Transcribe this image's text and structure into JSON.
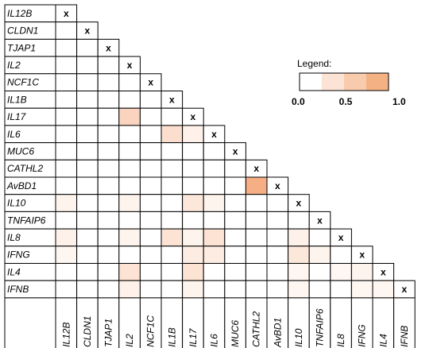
{
  "chart_data": {
    "type": "heatmap",
    "genes": [
      "IL12B",
      "CLDN1",
      "TJAP1",
      "IL2",
      "NCF1C",
      "IL1B",
      "IL17",
      "IL6",
      "MUC6",
      "CATHL2",
      "AvBD1",
      "IL10",
      "TNFAIP6",
      "IL8",
      "IFNG",
      "IL4",
      "IFNB"
    ],
    "diagonal_marker": "x",
    "layout": "lower-triangle",
    "values": [
      [],
      [
        0
      ],
      [
        0,
        0
      ],
      [
        0,
        0,
        0
      ],
      [
        0,
        0,
        0,
        0
      ],
      [
        0,
        0,
        0,
        0,
        0
      ],
      [
        0,
        0,
        0,
        0.45,
        0,
        0
      ],
      [
        0,
        0,
        0,
        0,
        0,
        0.35,
        0.15
      ],
      [
        0,
        0,
        0,
        0,
        0,
        0,
        0,
        0
      ],
      [
        0,
        0,
        0,
        0,
        0,
        0,
        0,
        0,
        0
      ],
      [
        0,
        0,
        0,
        0,
        0,
        0,
        0,
        0,
        0,
        0.85
      ],
      [
        0.12,
        0,
        0,
        0.12,
        0,
        0,
        0.25,
        0.12,
        0,
        0,
        0
      ],
      [
        0,
        0,
        0,
        0,
        0,
        0,
        0,
        0,
        0,
        0,
        0,
        0
      ],
      [
        0.15,
        0,
        0,
        0.12,
        0,
        0.3,
        0.12,
        0.3,
        0,
        0,
        0,
        0.15,
        0
      ],
      [
        0.1,
        0,
        0,
        0,
        0,
        0,
        0.2,
        0.2,
        0,
        0,
        0,
        0.25,
        0.12,
        0
      ],
      [
        0,
        0,
        0,
        0.3,
        0,
        0,
        0.3,
        0,
        0,
        0,
        0,
        0.1,
        0,
        0.08,
        0.12
      ],
      [
        0,
        0,
        0,
        0.15,
        0,
        0,
        0.12,
        0,
        0,
        0,
        0,
        0.1,
        0,
        0,
        0.1,
        0.1
      ]
    ]
  },
  "legend": {
    "title": "Legend:",
    "min_label": "0.0",
    "mid_label": "0.5",
    "max_label": "1.0",
    "colors": [
      "#ffffff",
      "#fce3d6",
      "#f8cbad",
      "#f4b183"
    ]
  },
  "colors": {
    "max": "#f4a070",
    "grid": "#000000"
  }
}
